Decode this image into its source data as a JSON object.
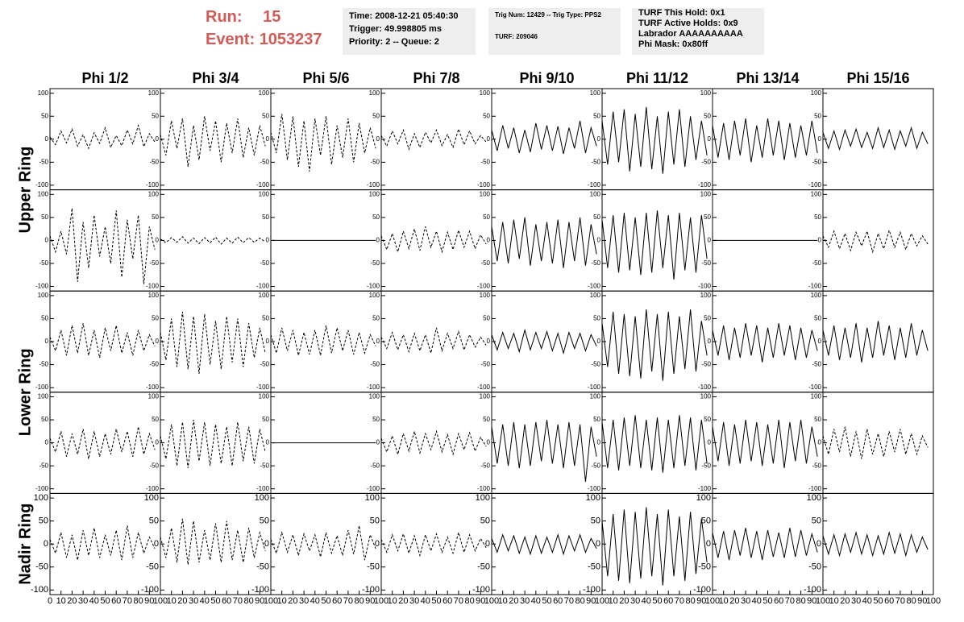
{
  "header": {
    "run_label": "Run:",
    "run": "15",
    "event_label": "Event:",
    "event": "1053237",
    "info": [
      [
        "Time: 2008-12-21 05:40:30",
        "Trigger: 49.998805 ms",
        "Priority: 2 -- Queue: 2"
      ],
      [
        "Trig Num: 12429 -- Trig Type: PPS2",
        "TURF: 209046"
      ],
      [
        "TURF This Hold: 0x1",
        "TURF Active Holds: 0x9",
        "Labrador AAAAAAAAAA",
        "Phi Mask: 0x80ff"
      ]
    ]
  },
  "chart_data": {
    "type": "line",
    "color": "#000000",
    "columns": [
      "Phi 1/2",
      "Phi 3/4",
      "Phi 5/6",
      "Phi 7/8",
      "Phi 9/10",
      "Phi 11/12",
      "Phi 13/14",
      "Phi 15/16"
    ],
    "rows": [
      "Upper Ring",
      "Lower Ring",
      "Nadir Ring"
    ],
    "xlim": [
      0,
      100
    ],
    "ylim": [
      -110,
      110
    ],
    "xticks": [
      0,
      10,
      20,
      30,
      40,
      50,
      60,
      70,
      80,
      90,
      100
    ],
    "yticks": [
      -100,
      -50,
      0,
      50,
      100
    ],
    "x": [
      0,
      5,
      10,
      15,
      20,
      25,
      30,
      35,
      40,
      45,
      50,
      55,
      60,
      65,
      70,
      75,
      80,
      85,
      90,
      95
    ],
    "panels": [
      [
        {
          "dashed": true,
          "values": [
            5,
            -12,
            18,
            -8,
            22,
            -15,
            10,
            -20,
            14,
            -9,
            25,
            -18,
            8,
            -14,
            20,
            -10,
            30,
            -16,
            12,
            -6
          ]
        },
        {
          "dashed": true,
          "values": [
            10,
            -35,
            40,
            -20,
            45,
            -60,
            30,
            -45,
            50,
            -25,
            40,
            -50,
            35,
            -30,
            45,
            -40,
            25,
            -35,
            30,
            -15
          ]
        },
        {
          "dashed": true,
          "values": [
            15,
            -30,
            55,
            -45,
            50,
            -60,
            40,
            -70,
            45,
            -35,
            50,
            -55,
            30,
            -40,
            45,
            -50,
            35,
            -30,
            25,
            -20
          ]
        },
        {
          "dashed": true,
          "values": [
            8,
            -15,
            18,
            -10,
            20,
            -22,
            12,
            -18,
            15,
            -8,
            20,
            -14,
            10,
            -18,
            22,
            -12,
            18,
            -10,
            8,
            -6
          ]
        },
        {
          "dashed": false,
          "values": [
            20,
            -25,
            30,
            -20,
            25,
            -30,
            20,
            -28,
            35,
            -22,
            30,
            -25,
            28,
            -32,
            25,
            -20,
            40,
            -30,
            25,
            -15
          ]
        },
        {
          "dashed": false,
          "values": [
            40,
            -55,
            60,
            -50,
            65,
            -70,
            55,
            -60,
            70,
            -65,
            50,
            -75,
            60,
            -55,
            65,
            -60,
            50,
            -45,
            40,
            -35
          ]
        },
        {
          "dashed": false,
          "values": [
            30,
            -40,
            35,
            -45,
            40,
            -35,
            45,
            -50,
            30,
            -40,
            45,
            -35,
            40,
            -45,
            35,
            -40,
            30,
            -35,
            40,
            -30
          ]
        },
        {
          "dashed": false,
          "values": [
            15,
            -20,
            18,
            -22,
            20,
            -15,
            22,
            -18,
            15,
            -20,
            25,
            -18,
            20,
            -22,
            18,
            -15,
            25,
            -20,
            15,
            -10
          ]
        }
      ],
      [
        {
          "dashed": true,
          "values": [
            10,
            -25,
            20,
            -30,
            70,
            -90,
            40,
            -60,
            55,
            -35,
            30,
            -50,
            65,
            -80,
            45,
            -40,
            55,
            -95,
            30,
            -20
          ]
        },
        {
          "dashed": true,
          "values": [
            3,
            -5,
            6,
            -4,
            8,
            -6,
            5,
            -7,
            6,
            -5,
            7,
            -8,
            5,
            -6,
            7,
            -5,
            6,
            -4,
            5,
            -3
          ]
        },
        {
          "dashed": false,
          "values": [
            0,
            0,
            0,
            0,
            0,
            0,
            0,
            0,
            0,
            0,
            0,
            0,
            0,
            0,
            0,
            0,
            0,
            0,
            0,
            0
          ]
        },
        {
          "dashed": true,
          "values": [
            10,
            -20,
            15,
            -25,
            20,
            -18,
            25,
            -22,
            30,
            -15,
            20,
            -25,
            18,
            -20,
            22,
            -15,
            20,
            -18,
            12,
            -8
          ]
        },
        {
          "dashed": false,
          "values": [
            30,
            -45,
            40,
            -50,
            45,
            -40,
            50,
            -55,
            35,
            -45,
            40,
            -50,
            45,
            -60,
            40,
            -45,
            50,
            -55,
            35,
            -30
          ]
        },
        {
          "dashed": false,
          "values": [
            45,
            -60,
            55,
            -70,
            60,
            -65,
            50,
            -75,
            60,
            -70,
            65,
            -60,
            55,
            -85,
            60,
            -65,
            50,
            -70,
            55,
            -40
          ]
        },
        {
          "dashed": false,
          "values": [
            0,
            0,
            0,
            0,
            0,
            0,
            0,
            0,
            0,
            0,
            0,
            0,
            0,
            0,
            0,
            0,
            0,
            0,
            0,
            0
          ]
        },
        {
          "dashed": true,
          "values": [
            10,
            -15,
            20,
            -18,
            15,
            -22,
            18,
            -12,
            20,
            -25,
            15,
            -18,
            22,
            -15,
            18,
            -20,
            15,
            -12,
            10,
            -8
          ]
        }
      ],
      [
        {
          "dashed": true,
          "values": [
            10,
            -20,
            25,
            -30,
            35,
            -25,
            40,
            -30,
            25,
            -35,
            30,
            -20,
            35,
            -25,
            20,
            -30,
            25,
            -20,
            15,
            -10
          ]
        },
        {
          "dashed": true,
          "values": [
            20,
            -40,
            50,
            -55,
            65,
            -60,
            55,
            -70,
            60,
            -50,
            45,
            -60,
            55,
            -45,
            50,
            -55,
            40,
            -35,
            30,
            -25
          ]
        },
        {
          "dashed": true,
          "values": [
            15,
            -25,
            30,
            -20,
            25,
            -30,
            20,
            -28,
            25,
            -30,
            35,
            -25,
            30,
            -20,
            25,
            -28,
            20,
            -25,
            15,
            -10
          ]
        },
        {
          "dashed": true,
          "values": [
            10,
            -15,
            20,
            -18,
            15,
            -22,
            18,
            -20,
            15,
            -25,
            30,
            -20,
            18,
            -15,
            22,
            -18,
            15,
            -12,
            10,
            -8
          ]
        },
        {
          "dashed": false,
          "values": [
            15,
            -18,
            20,
            -15,
            18,
            -22,
            25,
            -18,
            20,
            -15,
            22,
            -20,
            18,
            -25,
            20,
            -15,
            18,
            -20,
            15,
            -10
          ]
        },
        {
          "dashed": false,
          "values": [
            40,
            -55,
            65,
            -70,
            60,
            -75,
            55,
            -80,
            70,
            -65,
            60,
            -85,
            65,
            -70,
            55,
            -60,
            70,
            -65,
            45,
            -30
          ]
        },
        {
          "dashed": false,
          "values": [
            25,
            -30,
            35,
            -40,
            30,
            -35,
            40,
            -30,
            35,
            -45,
            30,
            -35,
            40,
            -30,
            35,
            -40,
            30,
            -35,
            25,
            -20
          ]
        },
        {
          "dashed": false,
          "values": [
            25,
            -30,
            35,
            -40,
            30,
            -35,
            40,
            -45,
            30,
            -35,
            45,
            -30,
            35,
            -40,
            30,
            -35,
            40,
            -30,
            25,
            -20
          ]
        }
      ],
      [
        {
          "dashed": true,
          "values": [
            10,
            -20,
            25,
            -30,
            20,
            -25,
            30,
            -35,
            25,
            -30,
            20,
            -25,
            30,
            -20,
            25,
            -30,
            35,
            -25,
            20,
            -15
          ]
        },
        {
          "dashed": true,
          "values": [
            15,
            -35,
            40,
            -50,
            45,
            -55,
            50,
            -40,
            45,
            -50,
            40,
            -45,
            35,
            -50,
            45,
            -40,
            35,
            -45,
            30,
            -20
          ]
        },
        {
          "dashed": false,
          "values": [
            0,
            0,
            0,
            0,
            0,
            0,
            0,
            0,
            0,
            0,
            0,
            0,
            0,
            0,
            0,
            0,
            0,
            0,
            0,
            0
          ]
        },
        {
          "dashed": true,
          "values": [
            10,
            -20,
            15,
            -25,
            20,
            -18,
            25,
            -22,
            20,
            -15,
            25,
            -20,
            18,
            -25,
            20,
            -15,
            22,
            -18,
            12,
            -8
          ]
        },
        {
          "dashed": false,
          "values": [
            35,
            -45,
            40,
            -50,
            45,
            -55,
            40,
            -50,
            45,
            -40,
            50,
            -45,
            40,
            -55,
            45,
            -50,
            40,
            -85,
            35,
            -30
          ]
        },
        {
          "dashed": false,
          "values": [
            45,
            -55,
            50,
            -60,
            55,
            -50,
            60,
            -55,
            50,
            -60,
            55,
            -65,
            50,
            -55,
            60,
            -50,
            55,
            -60,
            50,
            -45
          ]
        },
        {
          "dashed": false,
          "values": [
            35,
            -40,
            45,
            -50,
            40,
            -45,
            50,
            -40,
            45,
            -50,
            40,
            -45,
            50,
            -55,
            45,
            -40,
            50,
            -45,
            35,
            -30
          ]
        },
        {
          "dashed": true,
          "values": [
            15,
            -25,
            30,
            -20,
            35,
            -30,
            25,
            -35,
            30,
            -25,
            20,
            -30,
            25,
            -20,
            30,
            -25,
            20,
            -25,
            15,
            -10
          ]
        }
      ],
      [
        {
          "dashed": true,
          "values": [
            10,
            -20,
            25,
            -30,
            20,
            -35,
            30,
            -25,
            35,
            -30,
            20,
            -25,
            30,
            -35,
            40,
            -30,
            25,
            -20,
            15,
            -10
          ]
        },
        {
          "dashed": true,
          "values": [
            15,
            -30,
            35,
            -40,
            55,
            -45,
            50,
            -40,
            30,
            -35,
            45,
            -40,
            50,
            -35,
            30,
            -40,
            35,
            -30,
            25,
            -15
          ]
        },
        {
          "dashed": true,
          "values": [
            10,
            -20,
            25,
            -18,
            20,
            -25,
            22,
            -15,
            20,
            -28,
            25,
            -20,
            18,
            -25,
            30,
            -22,
            40,
            -35,
            20,
            -10
          ]
        },
        {
          "dashed": true,
          "values": [
            10,
            -18,
            20,
            -15,
            22,
            -20,
            18,
            -25,
            20,
            -15,
            22,
            -18,
            15,
            -20,
            25,
            -18,
            20,
            -15,
            12,
            -8
          ]
        },
        {
          "dashed": false,
          "values": [
            12,
            -18,
            20,
            -15,
            18,
            -20,
            15,
            -22,
            18,
            -20,
            15,
            -18,
            20,
            -22,
            18,
            -15,
            20,
            -18,
            12,
            -10
          ]
        },
        {
          "dashed": false,
          "values": [
            50,
            -70,
            65,
            -80,
            75,
            -85,
            70,
            -75,
            80,
            -70,
            65,
            -90,
            75,
            -70,
            60,
            -80,
            70,
            -65,
            55,
            -40
          ]
        },
        {
          "dashed": false,
          "values": [
            25,
            -30,
            28,
            -35,
            30,
            -25,
            35,
            -30,
            28,
            -35,
            30,
            -28,
            25,
            -30,
            35,
            -28,
            30,
            -25,
            22,
            -18
          ]
        },
        {
          "dashed": false,
          "values": [
            18,
            -22,
            20,
            -25,
            22,
            -18,
            25,
            -22,
            20,
            -25,
            18,
            -22,
            25,
            -20,
            22,
            -25,
            20,
            -18,
            15,
            -12
          ]
        }
      ]
    ]
  }
}
